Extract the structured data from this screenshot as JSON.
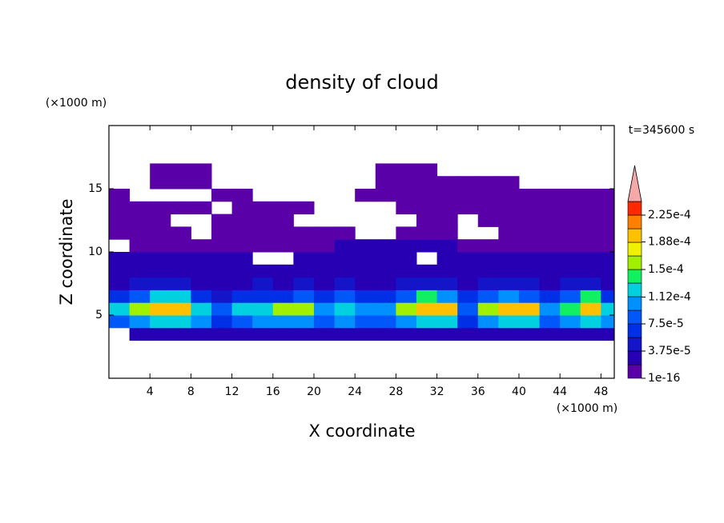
{
  "chart_data": {
    "type": "contour",
    "title": "density of cloud",
    "x_label": "X coordinate",
    "y_label": "Z coordinate",
    "x_unit": "(×1000 m)",
    "y_unit": "(×1000 m)",
    "annotation": "t=345600 s",
    "xlim": [
      0,
      49.3
    ],
    "ylim": [
      0,
      20
    ],
    "xticks": [
      4,
      8,
      12,
      16,
      20,
      24,
      28,
      32,
      36,
      40,
      44,
      48
    ],
    "yticks": [
      5,
      10,
      15
    ],
    "field": {
      "x": [
        1,
        3,
        5,
        7,
        9,
        11,
        13,
        15,
        17,
        19,
        21,
        23,
        25,
        27,
        29,
        31,
        33,
        35,
        37,
        39,
        41,
        43,
        45,
        47,
        49
      ],
      "z": [
        3.5,
        4.5,
        5.5,
        6.5,
        7.5,
        8.5,
        9.5,
        10.5,
        11.5,
        12.5,
        13.5,
        14.5,
        15.5,
        16.5
      ],
      "values": [
        [
          0,
          3e-05,
          3e-05,
          3e-05,
          3e-05,
          3e-05,
          3e-05,
          3e-05,
          3e-05,
          3e-05,
          3e-05,
          3e-05,
          3e-05,
          3e-05,
          3e-05,
          3e-05,
          3e-05,
          3e-05,
          3e-05,
          3e-05,
          3e-05,
          3e-05,
          3e-05,
          3e-05,
          3e-05
        ],
        [
          8e-05,
          0.0001,
          0.00012,
          0.00012,
          0.0001,
          7e-05,
          9e-05,
          0.0001,
          0.00011,
          0.00011,
          9e-05,
          0.0001,
          9e-05,
          9e-05,
          0.00011,
          0.00012,
          0.00012,
          7e-05,
          0.00011,
          0.00012,
          0.00012,
          9e-05,
          0.0001,
          0.00012,
          0.0001
        ],
        [
          0.00012,
          0.00015,
          0.00019,
          0.00019,
          0.00013,
          8e-05,
          0.00012,
          0.00012,
          0.00016,
          0.00016,
          0.0001,
          0.00013,
          0.0001,
          0.0001,
          0.00015,
          0.00019,
          0.00019,
          8e-05,
          0.00015,
          0.00019,
          0.00019,
          0.00011,
          0.00014,
          0.0002,
          0.00013
        ],
        [
          6e-05,
          8e-05,
          0.00013,
          0.00013,
          7e-05,
          5e-05,
          6e-05,
          6e-05,
          7e-05,
          8e-05,
          6e-05,
          9e-05,
          6e-05,
          6e-05,
          8e-05,
          0.00014,
          0.00011,
          6e-05,
          8e-05,
          0.00011,
          9e-05,
          7e-05,
          9e-05,
          0.00014,
          7e-05
        ],
        [
          3.5e-05,
          4e-05,
          5e-05,
          5e-05,
          3.5e-05,
          3.5e-05,
          3.5e-05,
          4e-05,
          3.5e-05,
          4e-05,
          3.5e-05,
          5e-05,
          3.5e-05,
          3.5e-05,
          4e-05,
          5e-05,
          5e-05,
          3.5e-05,
          4e-05,
          5e-05,
          4e-05,
          3.5e-05,
          4e-05,
          5e-05,
          3.5e-05
        ],
        [
          2.5e-05,
          2.5e-05,
          2.5e-05,
          2.5e-05,
          2.5e-05,
          2.5e-05,
          3e-05,
          2.5e-05,
          2.5e-05,
          2.5e-05,
          2.5e-05,
          3e-05,
          3e-05,
          2.5e-05,
          2.5e-05,
          2.5e-05,
          2.5e-05,
          2.5e-05,
          2.5e-05,
          2.5e-05,
          2.5e-05,
          2.5e-05,
          2.5e-05,
          2.5e-05,
          2.5e-05
        ],
        [
          2e-05,
          2e-05,
          2e-05,
          2e-05,
          2e-05,
          2e-05,
          2e-05,
          0,
          0,
          2e-05,
          2e-05,
          2e-05,
          2.5e-05,
          2.5e-05,
          2e-05,
          0,
          2e-05,
          2e-05,
          2e-05,
          2e-05,
          2e-05,
          2e-05,
          2e-05,
          2e-05,
          2e-05
        ],
        [
          0,
          1.5e-05,
          1.5e-05,
          1.5e-05,
          1.5e-05,
          1.5e-05,
          1.5e-05,
          1.5e-05,
          1.5e-05,
          1.5e-05,
          1.5e-05,
          2e-05,
          2.5e-05,
          2.5e-05,
          2.5e-05,
          2.5e-05,
          2.5e-05,
          1.5e-05,
          1.5e-05,
          1.5e-05,
          1.5e-05,
          1.5e-05,
          1.5e-05,
          1.5e-05,
          1.5e-05
        ],
        [
          1e-05,
          1e-05,
          1e-05,
          1e-05,
          0,
          1e-05,
          1e-05,
          1e-05,
          1e-05,
          1e-05,
          1e-05,
          1e-05,
          0,
          0,
          1e-05,
          1e-05,
          1e-05,
          0,
          0,
          1e-05,
          1e-05,
          1e-05,
          1e-05,
          1e-05,
          1e-05
        ],
        [
          1e-05,
          1e-05,
          1e-05,
          0,
          0,
          1e-05,
          1e-05,
          1e-05,
          1e-05,
          0,
          0,
          0,
          0,
          0,
          0,
          1e-05,
          1e-05,
          0,
          1e-05,
          1e-05,
          1e-05,
          1e-05,
          1e-05,
          1e-05,
          1e-05
        ],
        [
          1e-05,
          1e-05,
          1e-05,
          1e-05,
          1e-05,
          0,
          1e-05,
          1e-05,
          1e-05,
          1e-05,
          0,
          0,
          0,
          0,
          1e-05,
          1e-05,
          1e-05,
          1e-05,
          1e-05,
          1e-05,
          1e-05,
          1e-05,
          1e-05,
          1e-05,
          1e-05
        ],
        [
          1e-05,
          0,
          0,
          0,
          0,
          1e-05,
          1e-05,
          0,
          0,
          0,
          0,
          0,
          1e-05,
          1e-05,
          1e-05,
          1e-05,
          1e-05,
          1e-05,
          1e-05,
          1e-05,
          1e-05,
          1e-05,
          1e-05,
          1e-05,
          1e-05
        ],
        [
          0,
          0,
          1e-05,
          1e-05,
          1e-05,
          0,
          0,
          0,
          0,
          0,
          0,
          0,
          0,
          1e-05,
          1e-05,
          1e-05,
          1e-05,
          1e-05,
          1e-05,
          1e-05,
          0,
          0,
          0,
          0,
          0
        ],
        [
          0,
          0,
          1e-05,
          1e-05,
          1e-05,
          0,
          0,
          0,
          0,
          0,
          0,
          0,
          0,
          1e-05,
          1e-05,
          1e-05,
          0,
          0,
          0,
          0,
          0,
          0,
          0,
          0,
          0
        ]
      ]
    },
    "colorbar": {
      "levels": [
        1e-16,
        1.875e-05,
        3.75e-05,
        5.625e-05,
        7.5e-05,
        9.375e-05,
        0.0001125,
        0.00013125,
        0.00015,
        0.00016875,
        0.0001875,
        0.00020625,
        0.000225,
        0.00024375
      ],
      "colors": [
        "#5a00a8",
        "#2800b4",
        "#1414c8",
        "#0030e6",
        "#0058f8",
        "#0090ff",
        "#00d0e0",
        "#10f060",
        "#a0f000",
        "#f0f000",
        "#ffc000",
        "#ff8000",
        "#ff2800"
      ],
      "extend_color": "#f4a8a8",
      "ticks": [
        {
          "value": 1e-16,
          "label": "1e-16"
        },
        {
          "value": 3.75e-05,
          "label": "3.75e-5"
        },
        {
          "value": 7.5e-05,
          "label": "7.5e-5"
        },
        {
          "value": 0.000112,
          "label": "1.12e-4"
        },
        {
          "value": 0.00015,
          "label": "1.5e-4"
        },
        {
          "value": 0.000188,
          "label": "1.88e-4"
        },
        {
          "value": 0.000225,
          "label": "2.25e-4"
        }
      ]
    }
  }
}
